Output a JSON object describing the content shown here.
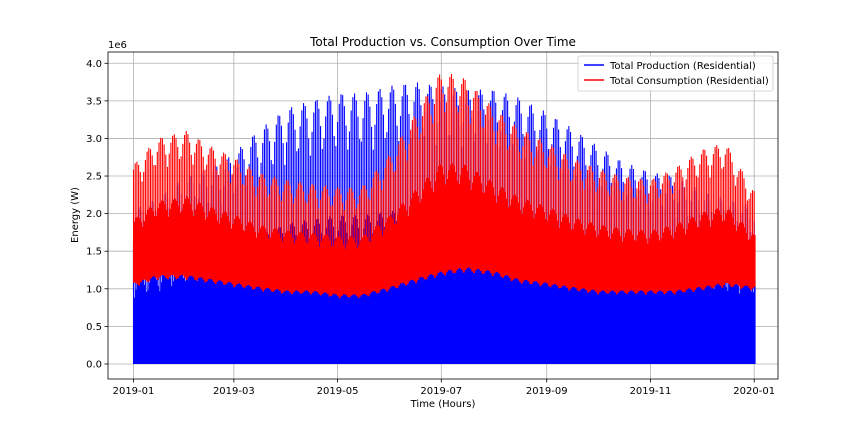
{
  "chart_data": {
    "type": "line",
    "title": "Total Production vs. Consumption Over Time",
    "xlabel": "Time (Hours)",
    "ylabel": "Energy (W)",
    "y_offset_label": "1e6",
    "y_scale": 1000000,
    "xlim": [
      "2018-12-17",
      "2020-01-15"
    ],
    "ylim": [
      -200000,
      4150000
    ],
    "x_ticks": [
      {
        "date": "2019-01-01",
        "label": "2019-01"
      },
      {
        "date": "2019-03-01",
        "label": "2019-03"
      },
      {
        "date": "2019-05-01",
        "label": "2019-05"
      },
      {
        "date": "2019-07-01",
        "label": "2019-07"
      },
      {
        "date": "2019-09-01",
        "label": "2019-09"
      },
      {
        "date": "2019-11-01",
        "label": "2019-11"
      },
      {
        "date": "2020-01-01",
        "label": "2020-01"
      }
    ],
    "y_ticks": [
      {
        "value": 0,
        "label": "0.0"
      },
      {
        "value": 500000,
        "label": "0.5"
      },
      {
        "value": 1000000,
        "label": "1.0"
      },
      {
        "value": 1500000,
        "label": "1.5"
      },
      {
        "value": 2000000,
        "label": "2.0"
      },
      {
        "value": 2500000,
        "label": "2.5"
      },
      {
        "value": 3000000,
        "label": "3.0"
      },
      {
        "value": 3500000,
        "label": "3.5"
      },
      {
        "value": 4000000,
        "label": "4.0"
      }
    ],
    "grid": true,
    "legend_position": "top-right",
    "series": [
      {
        "name": "Total Production (Residential)",
        "color": "#0000ff",
        "sampling": "daily envelope (min, max)",
        "x_dates": [
          "2019-01-01",
          "2019-01-15",
          "2019-02-01",
          "2019-02-15",
          "2019-03-01",
          "2019-03-15",
          "2019-04-01",
          "2019-04-15",
          "2019-05-01",
          "2019-05-15",
          "2019-06-01",
          "2019-06-15",
          "2019-07-01",
          "2019-07-15",
          "2019-08-01",
          "2019-08-15",
          "2019-09-01",
          "2019-09-15",
          "2019-10-01",
          "2019-10-15",
          "2019-11-01",
          "2019-11-15",
          "2019-12-01",
          "2019-12-15",
          "2020-01-01"
        ],
        "min": [
          0,
          0,
          0,
          0,
          0,
          0,
          0,
          0,
          0,
          0,
          0,
          0,
          0,
          0,
          0,
          0,
          0,
          0,
          0,
          0,
          0,
          0,
          0,
          0,
          0
        ],
        "max": [
          2050000,
          2200000,
          2500000,
          2600000,
          2800000,
          3100000,
          3400000,
          3500000,
          3600000,
          3600000,
          3700000,
          3750000,
          3700000,
          3650000,
          3650000,
          3550000,
          3350000,
          3150000,
          2900000,
          2700000,
          2550000,
          2500000,
          2300000,
          2200000,
          2100000
        ]
      },
      {
        "name": "Total Consumption (Residential)",
        "color": "#ff0000",
        "sampling": "daily envelope (min, max)",
        "x_dates": [
          "2019-01-01",
          "2019-01-15",
          "2019-02-01",
          "2019-02-15",
          "2019-03-01",
          "2019-03-15",
          "2019-04-01",
          "2019-04-15",
          "2019-05-01",
          "2019-05-15",
          "2019-06-01",
          "2019-06-15",
          "2019-07-01",
          "2019-07-15",
          "2019-08-01",
          "2019-08-15",
          "2019-09-01",
          "2019-09-15",
          "2019-10-01",
          "2019-10-15",
          "2019-11-01",
          "2019-11-15",
          "2019-12-01",
          "2019-12-15",
          "2020-01-01"
        ],
        "min": [
          1050000,
          1150000,
          1150000,
          1100000,
          1050000,
          1000000,
          950000,
          950000,
          900000,
          900000,
          1000000,
          1100000,
          1200000,
          1250000,
          1200000,
          1100000,
          1050000,
          1000000,
          950000,
          950000,
          950000,
          950000,
          1000000,
          1050000,
          1000000
        ],
        "max": [
          2650000,
          3000000,
          3100000,
          2900000,
          2750000,
          2550000,
          2450000,
          2400000,
          2350000,
          2350000,
          2800000,
          3300000,
          3900000,
          3800000,
          3400000,
          3150000,
          2950000,
          2750000,
          2600000,
          2500000,
          2450000,
          2600000,
          2850000,
          2950000,
          2300000
        ]
      }
    ]
  }
}
